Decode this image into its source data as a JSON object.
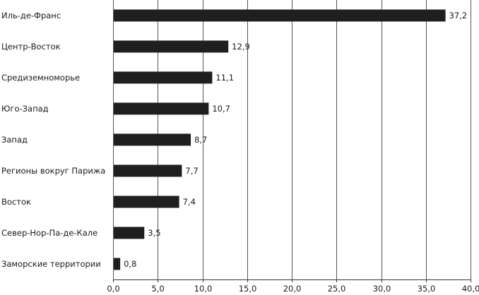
{
  "chart_data": {
    "type": "bar",
    "orientation": "horizontal",
    "categories": [
      "Иль-де-Франс",
      "Центр-Восток",
      "Средиземноморье",
      "Юго-Запад",
      "Запад",
      "Регионы вокруг Парижа",
      "Восток",
      "Север-Нор-Па-де-Кале",
      "Заморские территории"
    ],
    "values": [
      37.2,
      12.9,
      11.1,
      10.7,
      8.7,
      7.7,
      7.4,
      3.5,
      0.8
    ],
    "value_labels": [
      "37,2",
      "12,9",
      "11,1",
      "10,7",
      "8,7",
      "7,7",
      "7,4",
      "3,5",
      "0,8"
    ],
    "xlim": [
      0,
      40
    ],
    "xticks": [
      "0,0",
      "5,0",
      "10,0",
      "15,0",
      "20,0",
      "25,0",
      "30,0",
      "35,0",
      "40,0"
    ],
    "grid": true,
    "bar_color": "#1f1f1f",
    "title": "",
    "xlabel": "",
    "ylabel": ""
  }
}
